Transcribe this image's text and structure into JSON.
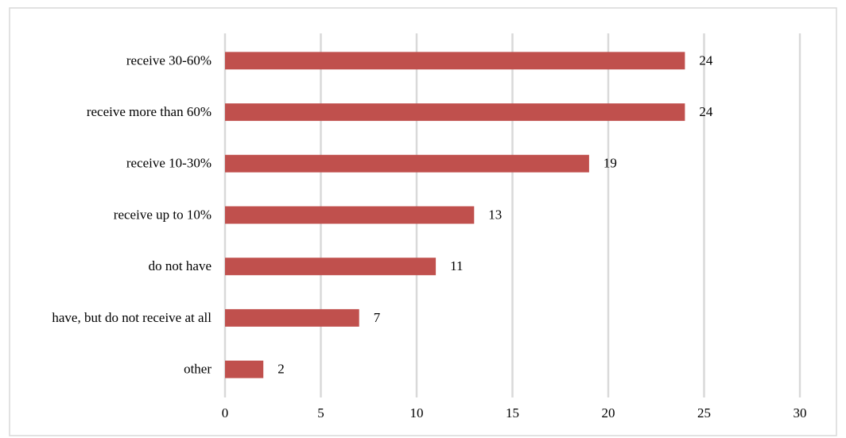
{
  "chart_data": {
    "type": "bar",
    "orientation": "horizontal",
    "categories": [
      "receive 30-60%",
      "receive more than 60%",
      "receive 10-30%",
      "receive up to 10%",
      "do not have",
      "have, but do not receive at all",
      "other"
    ],
    "values": [
      24,
      24,
      19,
      13,
      11,
      7,
      2
    ],
    "color": "#c0504d",
    "xlim": [
      0,
      30
    ],
    "xticks": [
      0,
      5,
      10,
      15,
      20,
      25,
      30
    ],
    "grid": true
  }
}
